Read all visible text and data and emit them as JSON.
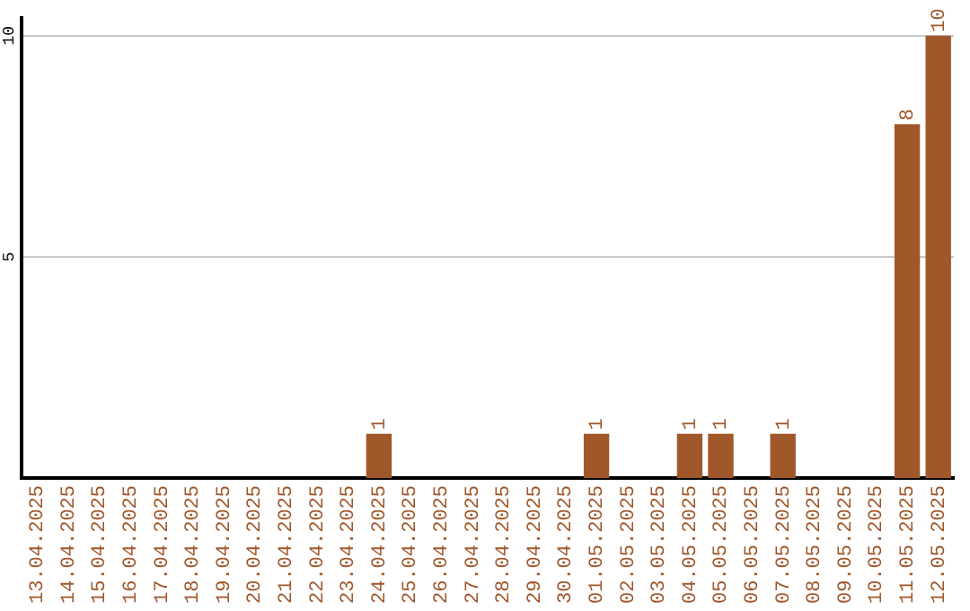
{
  "chart_data": {
    "type": "bar",
    "categories": [
      "13.04.2025",
      "14.04.2025",
      "15.04.2025",
      "16.04.2025",
      "17.04.2025",
      "18.04.2025",
      "19.04.2025",
      "20.04.2025",
      "21.04.2025",
      "22.04.2025",
      "23.04.2025",
      "24.04.2025",
      "25.04.2025",
      "26.04.2025",
      "27.04.2025",
      "28.04.2025",
      "29.04.2025",
      "30.04.2025",
      "01.05.2025",
      "02.05.2025",
      "03.05.2025",
      "04.05.2025",
      "05.05.2025",
      "06.05.2025",
      "07.05.2025",
      "08.05.2025",
      "09.05.2025",
      "10.05.2025",
      "11.05.2025",
      "12.05.2025"
    ],
    "values": [
      0,
      0,
      0,
      0,
      0,
      0,
      0,
      0,
      0,
      0,
      0,
      1,
      0,
      0,
      0,
      0,
      0,
      0,
      1,
      0,
      0,
      1,
      1,
      0,
      1,
      0,
      0,
      0,
      8,
      10
    ],
    "value_labels": [
      null,
      null,
      null,
      null,
      null,
      null,
      null,
      null,
      null,
      null,
      null,
      "1",
      null,
      null,
      null,
      null,
      null,
      null,
      "1",
      null,
      null,
      "1",
      "1",
      null,
      "1",
      null,
      null,
      null,
      "8",
      "10"
    ],
    "color": "#a0572a",
    "ylim": [
      0,
      10.4
    ],
    "yticks": [
      5,
      10
    ],
    "grid": "y",
    "legend": false
  }
}
